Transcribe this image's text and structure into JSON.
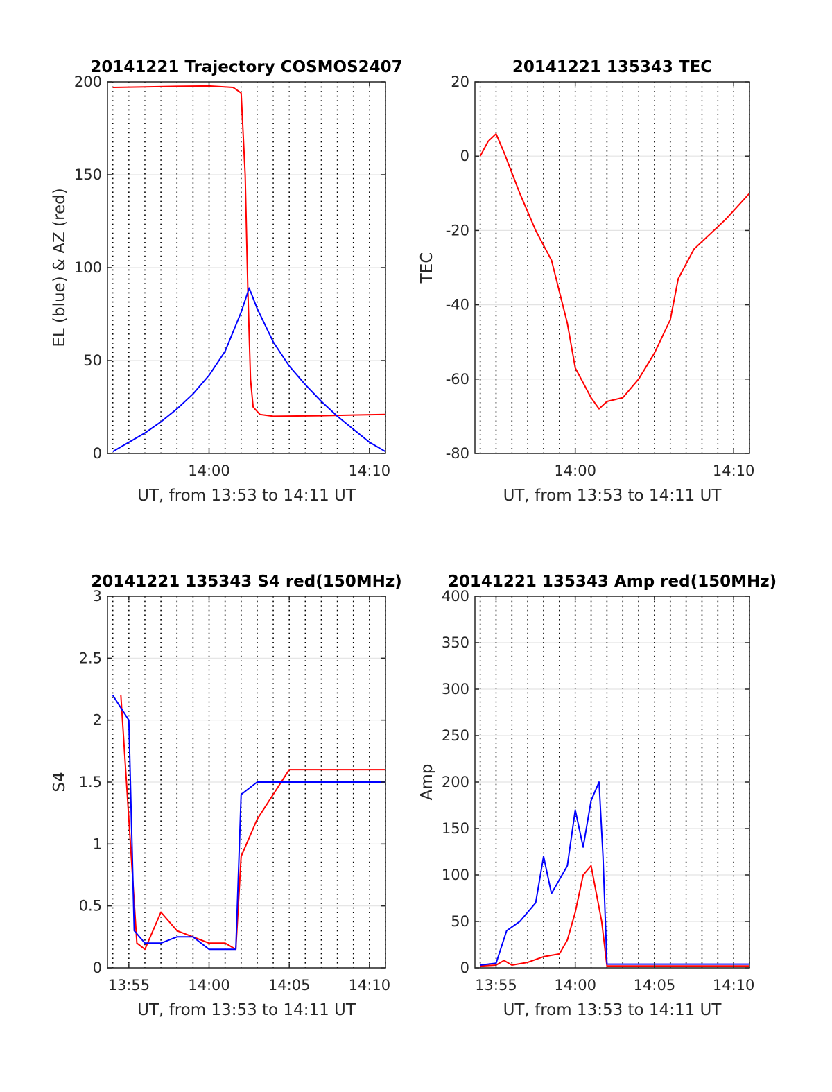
{
  "chart_data": [
    {
      "type": "line",
      "title": "20141221 Trajectory COSMOS2407",
      "xlabel": "UT, from 13:53 to 14:11 UT",
      "ylabel": "EL (blue) & AZ (red)",
      "xlim": [
        "13:53:40",
        "14:11:00"
      ],
      "ylim": [
        0,
        200
      ],
      "yticks": [
        0,
        50,
        100,
        150,
        200
      ],
      "xticks": [
        {
          "t": "14:00",
          "label": "14:00"
        },
        {
          "t": "14:10",
          "label": "14:10"
        }
      ],
      "grid": true,
      "series": [
        {
          "color": "#ff0000",
          "x": [
            "13:54:00",
            "13:56:00",
            "13:58:00",
            "14:00:00",
            "14:01:30",
            "14:02:00",
            "14:02:15",
            "14:02:25",
            "14:02:35",
            "14:02:45",
            "14:03:10",
            "14:04:00",
            "14:07:00",
            "14:11:00"
          ],
          "y": [
            197,
            197.3,
            197.6,
            197.8,
            197,
            194,
            150,
            89,
            40,
            25,
            21,
            20,
            20.3,
            21
          ]
        },
        {
          "color": "#0000ff",
          "x": [
            "13:54:00",
            "13:55:00",
            "13:56:00",
            "13:57:00",
            "13:58:00",
            "13:59:00",
            "14:00:00",
            "14:01:00",
            "14:02:00",
            "14:02:30",
            "14:03:00",
            "14:04:00",
            "14:05:00",
            "14:06:00",
            "14:07:00",
            "14:08:00",
            "14:09:00",
            "14:10:00",
            "14:11:00"
          ],
          "y": [
            1,
            6,
            11,
            17,
            24,
            32,
            42,
            55,
            76,
            89,
            78,
            60,
            47,
            37,
            28,
            20,
            13,
            6,
            1
          ]
        }
      ]
    },
    {
      "type": "line",
      "title": "20141221 135343 TEC",
      "xlabel": "UT, from 13:53 to 14:11 UT",
      "ylabel": "TEC",
      "xlim": [
        "13:53:40",
        "14:11:00"
      ],
      "ylim": [
        -80,
        20
      ],
      "yticks": [
        -80,
        -60,
        -40,
        -20,
        0,
        20
      ],
      "xticks": [
        {
          "t": "14:00",
          "label": "14:00"
        },
        {
          "t": "14:10",
          "label": "14:10"
        }
      ],
      "grid": true,
      "series": [
        {
          "color": "#ff0000",
          "x": [
            "13:54:00",
            "13:54:30",
            "13:55:00",
            "13:55:30",
            "13:56:30",
            "13:57:30",
            "13:58:30",
            "13:59:30",
            "14:00:00",
            "14:01:00",
            "14:01:30",
            "14:02:00",
            "14:03:00",
            "14:04:00",
            "14:05:00",
            "14:06:00",
            "14:06:30",
            "14:07:30",
            "14:08:30",
            "14:09:30",
            "14:11:00"
          ],
          "y": [
            0,
            4,
            6,
            1,
            -10,
            -20,
            -28,
            -45,
            -57,
            -65,
            -68,
            -66,
            -65,
            -60,
            -53,
            -44,
            -33,
            -25,
            -21,
            -17,
            -10
          ]
        }
      ]
    },
    {
      "type": "line",
      "title": "20141221 135343 S4 red(150MHz)",
      "xlabel": "UT, from 13:53 to 14:11 UT",
      "ylabel": "S4",
      "xlim": [
        "13:53:40",
        "14:11:00"
      ],
      "ylim": [
        0,
        3
      ],
      "yticks": [
        0,
        0.5,
        1,
        1.5,
        2,
        2.5,
        3
      ],
      "xticks": [
        {
          "t": "13:55",
          "label": "13:55"
        },
        {
          "t": "14:00",
          "label": "14:00"
        },
        {
          "t": "14:05",
          "label": "14:05"
        },
        {
          "t": "14:10",
          "label": "14:10"
        }
      ],
      "grid": true,
      "series": [
        {
          "color": "#ff0000",
          "x": [
            "13:54:30",
            "13:55:30",
            "13:56:00",
            "13:57:00",
            "13:58:00",
            "13:59:00",
            "14:00:00",
            "14:01:00",
            "14:01:40",
            "14:02:00",
            "14:03:00",
            "14:05:00",
            "14:07:00",
            "14:09:00",
            "14:11:00"
          ],
          "y": [
            2.2,
            0.2,
            0.15,
            0.45,
            0.3,
            0.25,
            0.2,
            0.2,
            0.15,
            0.9,
            1.2,
            1.6,
            1.6,
            1.6,
            1.6
          ]
        },
        {
          "color": "#0000ff",
          "x": [
            "13:54:00",
            "13:55:00",
            "13:55:20",
            "13:56:00",
            "13:57:00",
            "13:58:00",
            "13:59:00",
            "14:00:00",
            "14:01:00",
            "14:01:40",
            "14:02:00",
            "14:03:00",
            "14:05:00",
            "14:07:00",
            "14:09:00",
            "14:11:00"
          ],
          "y": [
            2.2,
            2.0,
            0.3,
            0.2,
            0.2,
            0.25,
            0.25,
            0.15,
            0.15,
            0.15,
            1.4,
            1.5,
            1.5,
            1.5,
            1.5,
            1.5
          ]
        }
      ]
    },
    {
      "type": "line",
      "title": "20141221 135343 Amp red(150MHz)",
      "xlabel": "UT, from 13:53 to 14:11 UT",
      "ylabel": "Amp",
      "xlim": [
        "13:53:40",
        "14:11:00"
      ],
      "ylim": [
        0,
        400
      ],
      "yticks": [
        0,
        50,
        100,
        150,
        200,
        250,
        300,
        350,
        400
      ],
      "xticks": [
        {
          "t": "13:55",
          "label": "13:55"
        },
        {
          "t": "14:00",
          "label": "14:00"
        },
        {
          "t": "14:05",
          "label": "14:05"
        },
        {
          "t": "14:10",
          "label": "14:10"
        }
      ],
      "grid": true,
      "series": [
        {
          "color": "#ff0000",
          "x": [
            "13:54:00",
            "13:55:00",
            "13:55:30",
            "13:56:00",
            "13:57:00",
            "13:58:00",
            "13:59:00",
            "13:59:30",
            "14:00:00",
            "14:00:30",
            "14:01:00",
            "14:01:40",
            "14:02:00",
            "14:06:00",
            "14:11:00"
          ],
          "y": [
            2,
            3,
            8,
            3,
            6,
            12,
            15,
            30,
            60,
            100,
            110,
            50,
            2,
            2,
            2
          ]
        },
        {
          "color": "#0000ff",
          "x": [
            "13:54:00",
            "13:55:00",
            "13:55:40",
            "13:56:30",
            "13:57:30",
            "13:58:00",
            "13:58:30",
            "13:59:30",
            "14:00:00",
            "14:00:30",
            "14:01:00",
            "14:01:30",
            "14:01:45",
            "14:02:00",
            "14:05:00",
            "14:11:00"
          ],
          "y": [
            3,
            5,
            40,
            50,
            70,
            120,
            80,
            110,
            170,
            130,
            180,
            200,
            120,
            4,
            4,
            4
          ]
        }
      ]
    }
  ]
}
